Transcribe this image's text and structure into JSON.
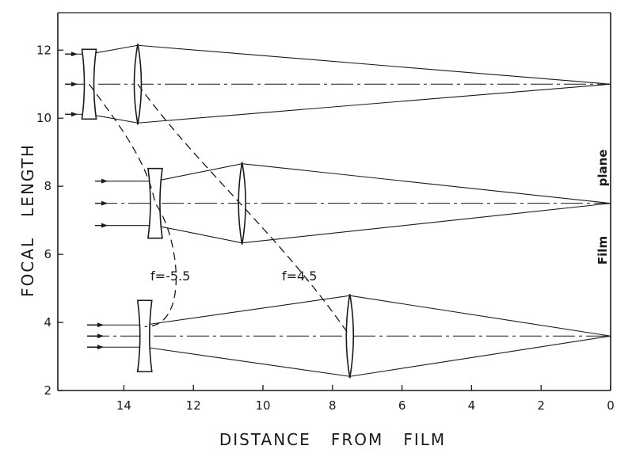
{
  "chart_data": {
    "type": "diagram",
    "xlabel": "DISTANCE   FROM   FILM",
    "ylabel": "FOCAL   LENGTH",
    "xlim": [
      15.9,
      0
    ],
    "ylim": [
      2,
      13.1
    ],
    "x_ticks": [
      {
        "value": 14,
        "label": "14"
      },
      {
        "value": 12,
        "label": "12"
      },
      {
        "value": 10,
        "label": "10"
      },
      {
        "value": 8,
        "label": "8"
      },
      {
        "value": 6,
        "label": "6"
      },
      {
        "value": 4,
        "label": "4"
      },
      {
        "value": 2,
        "label": "2"
      },
      {
        "value": 0,
        "label": "0"
      }
    ],
    "y_ticks": [
      {
        "value": 12,
        "label": "12"
      },
      {
        "value": 10,
        "label": "10"
      },
      {
        "value": 8,
        "label": "8"
      },
      {
        "value": 6,
        "label": "6"
      },
      {
        "value": 4,
        "label": "4"
      },
      {
        "value": 2,
        "label": "2"
      }
    ],
    "right_labels": {
      "film": "Film",
      "plane": "plane"
    },
    "annotations": {
      "negative_lens": "f=-5.5",
      "positive_lens": "f=4.5"
    },
    "configurations": [
      {
        "focal_length": 11.0,
        "negative_lens_x": 15.0,
        "positive_lens_x": 13.6
      },
      {
        "focal_length": 7.5,
        "negative_lens_x": 13.1,
        "positive_lens_x": 10.6
      },
      {
        "focal_length": 3.6,
        "negative_lens_x": 13.4,
        "positive_lens_x": 7.5
      }
    ]
  }
}
